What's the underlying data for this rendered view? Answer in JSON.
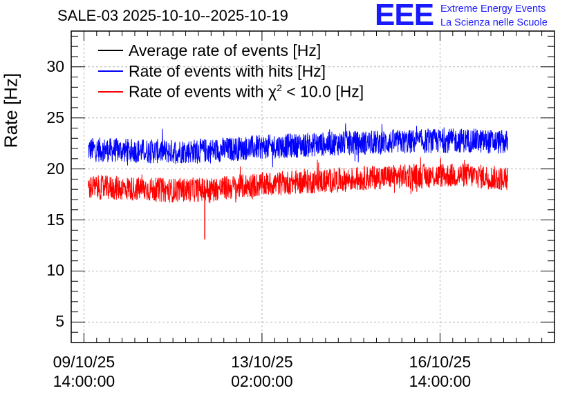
{
  "title": "SALE-03 2025-10-10--2025-10-19",
  "logo": {
    "text": "EEE",
    "line1": "Extreme Energy Events",
    "line2": "La Scienza nelle Scuole"
  },
  "colors": {
    "average": "#000000",
    "hits": "#0000ff",
    "chi2": "#ff0000",
    "grid": "#b4b4b4",
    "logo": "#1a1aff"
  },
  "chart_data": {
    "type": "line",
    "title": "SALE-03 2025-10-10--2025-10-19",
    "ylabel": "Rate [Hz]",
    "xlabel": "",
    "ylim": [
      3,
      33.5
    ],
    "xlim_hours": [
      -6,
      222
    ],
    "grid": true,
    "legend_position": "top-left",
    "y_ticks": [
      "5",
      "10",
      "15",
      "20",
      "25",
      "30"
    ],
    "x_ticks": [
      {
        "hours": 0,
        "date": "09/10/25",
        "time": "14:00:00"
      },
      {
        "hours": 84,
        "date": "13/10/25",
        "time": "02:00:00"
      },
      {
        "hours": 168,
        "date": "16/10/25",
        "time": "14:00:00"
      }
    ],
    "series": [
      {
        "name": "Average rate of events [Hz]",
        "color": "#000000",
        "x": [],
        "values": []
      },
      {
        "name": "Rate of events with hits [Hz]",
        "color": "#0000ff",
        "x": [
          2,
          20,
          40,
          60,
          80,
          100,
          120,
          140,
          160,
          180,
          200
        ],
        "values": [
          21.9,
          21.8,
          21.7,
          21.8,
          22.1,
          22.3,
          22.5,
          22.6,
          22.7,
          22.8,
          22.6
        ]
      },
      {
        "name": "Rate of events with χ² < 10.0 [Hz]",
        "color": "#ff0000",
        "x": [
          2,
          20,
          40,
          57,
          60,
          80,
          100,
          120,
          140,
          160,
          180,
          200
        ],
        "values": [
          18.2,
          18.1,
          17.9,
          13.1,
          18.0,
          18.4,
          18.7,
          18.9,
          19.2,
          19.3,
          19.4,
          19.0
        ]
      }
    ],
    "noise_amplitude_hz": 1.2
  },
  "legend": {
    "avg_label": "Average rate of events [Hz]",
    "hits_label": "Rate of events with hits [Hz]",
    "chi2_prefix": "Rate of events with χ",
    "chi2_sup": "2",
    "chi2_suffix": " < 10.0 [Hz]"
  }
}
